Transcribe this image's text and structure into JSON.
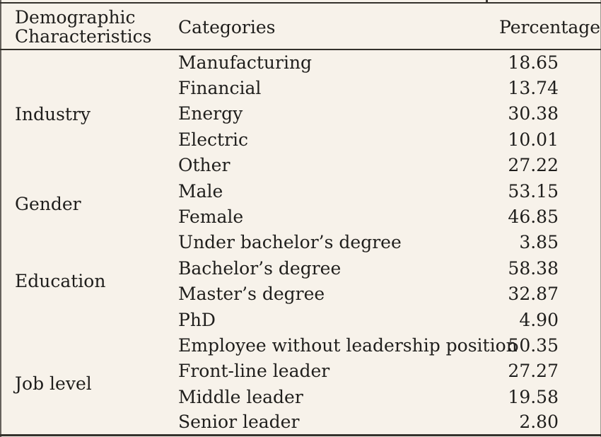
{
  "page": {
    "background_color": "#f7f2ea",
    "rule_color": "#34312c",
    "text_color": "#1f1e1c"
  },
  "table": {
    "headers": {
      "demographic": "Demographic\nCharacteristics",
      "categories": "Categories",
      "percentage": "Percentage"
    },
    "groups": [
      {
        "label": "Industry",
        "rows": [
          {
            "category": "Manufacturing",
            "percentage": "18.65"
          },
          {
            "category": "Financial",
            "percentage": "13.74"
          },
          {
            "category": "Energy",
            "percentage": "30.38"
          },
          {
            "category": "Electric",
            "percentage": "10.01"
          },
          {
            "category": "Other",
            "percentage": "27.22"
          }
        ]
      },
      {
        "label": "Gender",
        "rows": [
          {
            "category": "Male",
            "percentage": "53.15"
          },
          {
            "category": "Female",
            "percentage": "46.85"
          }
        ]
      },
      {
        "label": "Education",
        "rows": [
          {
            "category": "Under bachelor’s degree",
            "percentage": "3.85"
          },
          {
            "category": "Bachelor’s degree",
            "percentage": "58.38"
          },
          {
            "category": "Master’s degree",
            "percentage": "32.87"
          },
          {
            "category": "PhD",
            "percentage": "4.90"
          }
        ]
      },
      {
        "label": "Job level",
        "rows": [
          {
            "category": "Employee without leadership position",
            "percentage": "50.35"
          },
          {
            "category": "Front-line leader",
            "percentage": "27.27"
          },
          {
            "category": "Middle leader",
            "percentage": "19.58"
          },
          {
            "category": "Senior leader",
            "percentage": "2.80"
          }
        ]
      }
    ]
  }
}
